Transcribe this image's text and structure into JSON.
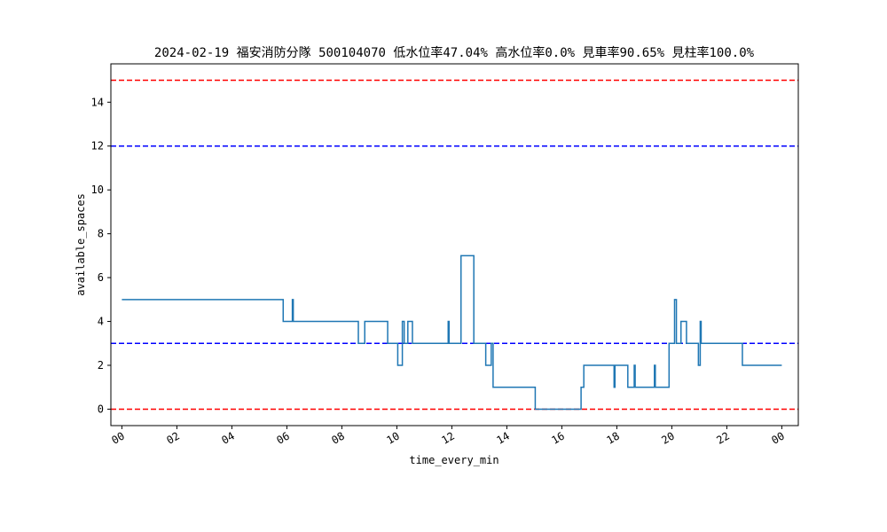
{
  "chart_data": {
    "type": "line",
    "title": "2024-02-19 福安消防分隊 500104070 低水位率47.04% 高水位率0.0% 見車率90.65% 見柱率100.0%",
    "xlabel": "time_every_min",
    "ylabel": "available_spaces",
    "xlim": [
      "2024-02-18 23:36",
      "2024-02-20 00:36"
    ],
    "ylim": [
      -0.75,
      15.75
    ],
    "x_ticks": [
      {
        "label": "00",
        "value": "2024-02-19 00:00"
      },
      {
        "label": "02",
        "value": "2024-02-19 02:00"
      },
      {
        "label": "04",
        "value": "2024-02-19 04:00"
      },
      {
        "label": "06",
        "value": "2024-02-19 06:00"
      },
      {
        "label": "08",
        "value": "2024-02-19 08:00"
      },
      {
        "label": "10",
        "value": "2024-02-19 10:00"
      },
      {
        "label": "12",
        "value": "2024-02-19 12:00"
      },
      {
        "label": "14",
        "value": "2024-02-19 14:00"
      },
      {
        "label": "16",
        "value": "2024-02-19 16:00"
      },
      {
        "label": "18",
        "value": "2024-02-19 18:00"
      },
      {
        "label": "20",
        "value": "2024-02-19 20:00"
      },
      {
        "label": "22",
        "value": "2024-02-19 22:00"
      },
      {
        "label": "00",
        "value": "2024-02-20 00:00"
      }
    ],
    "y_ticks": [
      0,
      2,
      4,
      6,
      8,
      10,
      12,
      14
    ],
    "grid": false,
    "reference_lines": [
      {
        "y": 15,
        "color": "#ff0000",
        "style": "dashed"
      },
      {
        "y": 12,
        "color": "#0000ff",
        "style": "dashed"
      },
      {
        "y": 3,
        "color": "#0000ff",
        "style": "dashed"
      },
      {
        "y": 0,
        "color": "#ff0000",
        "style": "dashed"
      }
    ],
    "series": [
      {
        "color": "#1f77b4",
        "step": "post",
        "points": [
          [
            "2024-02-19 00:00",
            5
          ],
          [
            "2024-02-19 05:52",
            4
          ],
          [
            "2024-02-19 06:12",
            5
          ],
          [
            "2024-02-19 06:14",
            4
          ],
          [
            "2024-02-19 08:36",
            3
          ],
          [
            "2024-02-19 08:50",
            4
          ],
          [
            "2024-02-19 09:40",
            3
          ],
          [
            "2024-02-19 10:02",
            2
          ],
          [
            "2024-02-19 10:12",
            4
          ],
          [
            "2024-02-19 10:16",
            3
          ],
          [
            "2024-02-19 10:24",
            4
          ],
          [
            "2024-02-19 10:34",
            3
          ],
          [
            "2024-02-19 11:52",
            4
          ],
          [
            "2024-02-19 11:54",
            3
          ],
          [
            "2024-02-19 12:20",
            7
          ],
          [
            "2024-02-19 12:48",
            3
          ],
          [
            "2024-02-19 13:14",
            2
          ],
          [
            "2024-02-19 13:26",
            3
          ],
          [
            "2024-02-19 13:30",
            1
          ],
          [
            "2024-02-19 15:02",
            0
          ],
          [
            "2024-02-19 16:42",
            1
          ],
          [
            "2024-02-19 16:48",
            2
          ],
          [
            "2024-02-19 17:54",
            1
          ],
          [
            "2024-02-19 17:56",
            2
          ],
          [
            "2024-02-19 18:24",
            1
          ],
          [
            "2024-02-19 18:38",
            2
          ],
          [
            "2024-02-19 18:40",
            1
          ],
          [
            "2024-02-19 19:22",
            2
          ],
          [
            "2024-02-19 19:24",
            1
          ],
          [
            "2024-02-19 19:54",
            3
          ],
          [
            "2024-02-19 20:06",
            5
          ],
          [
            "2024-02-19 20:10",
            3
          ],
          [
            "2024-02-19 20:20",
            4
          ],
          [
            "2024-02-19 20:32",
            3
          ],
          [
            "2024-02-19 20:58",
            2
          ],
          [
            "2024-02-19 21:02",
            4
          ],
          [
            "2024-02-19 21:04",
            3
          ],
          [
            "2024-02-19 22:34",
            2
          ],
          [
            "2024-02-20 00:00",
            2
          ]
        ]
      }
    ]
  }
}
